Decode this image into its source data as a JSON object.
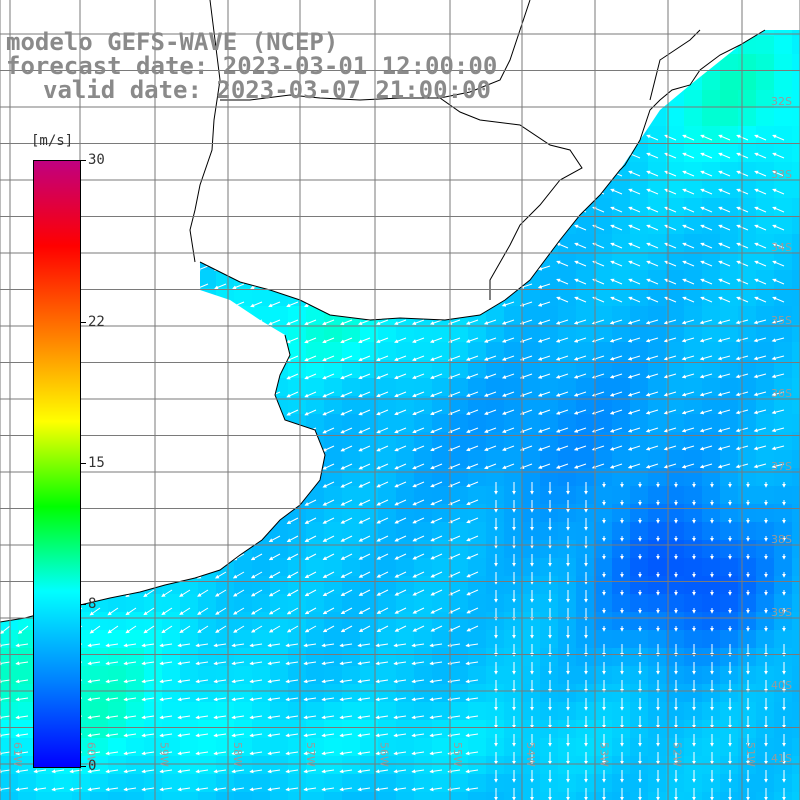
{
  "header": {
    "line1": "modelo GEFS-WAVE (NCEP)",
    "line2": "forecast date: 2023-03-01 12:00:00",
    "line3": "valid date: 2023-03-07 21:00:00"
  },
  "colorbar": {
    "unit": "[m/s]",
    "ticks": [
      {
        "label": "30",
        "value": 30
      },
      {
        "label": "22",
        "value": 22
      },
      {
        "label": "15",
        "value": 15
      },
      {
        "label": "8",
        "value": 8
      },
      {
        "label": "0",
        "value": 0
      }
    ],
    "range": [
      0,
      30
    ],
    "colors": [
      "#0000ff",
      "#0080ff",
      "#00ffff",
      "#00ff00",
      "#ffff00",
      "#ff8000",
      "#ff0000",
      "#c00080"
    ]
  },
  "lat_labels": [
    "32S",
    "33S",
    "34S",
    "35S",
    "36S",
    "37S",
    "38S",
    "39S",
    "40S",
    "41S"
  ],
  "lon_labels": [
    "61W",
    "60W",
    "59W",
    "58W",
    "57W",
    "56W",
    "55W",
    "54W",
    "53W",
    "52W",
    "51W"
  ],
  "colors": {
    "land": "#ffffff",
    "grid": "#7a7a7a",
    "coast": "#000000",
    "arrow": "#ffffff",
    "header": "#8a8a8a"
  }
}
